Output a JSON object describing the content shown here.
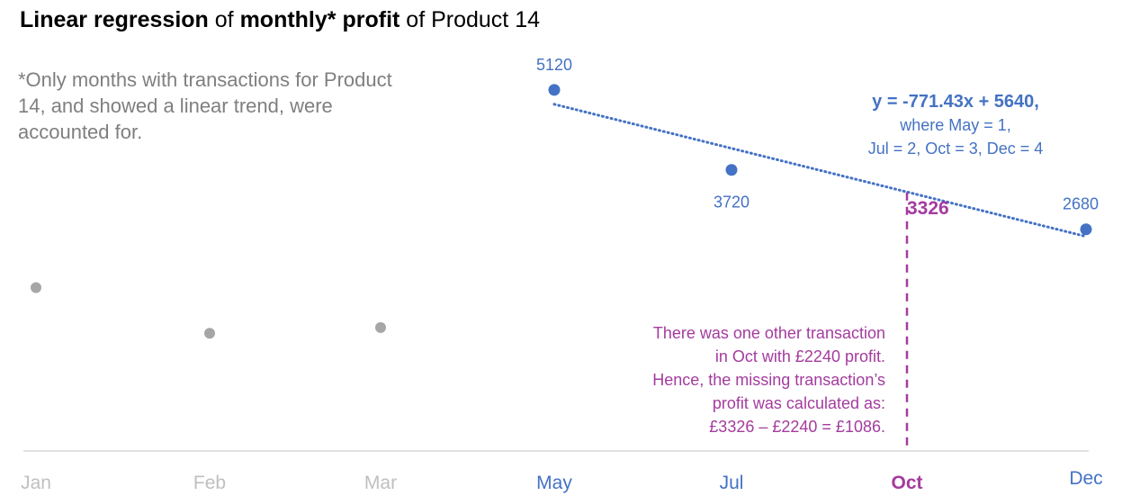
{
  "title": {
    "part1": "Linear regression",
    "part2": " of ",
    "part3": "monthly*",
    "part4": " ",
    "part5": "profit",
    "part6": " of Product 14"
  },
  "footnote": "*Only months with transactions for Product 14, and showed a linear trend, were accounted for.",
  "equation": {
    "main": "y = -771.43x + 5640,",
    "line2": "where May = 1,",
    "line3": "Jul = 2, Oct = 3, Dec = 4"
  },
  "note": {
    "line1": "There was one other transaction",
    "line2": "in Oct with £2240 profit.",
    "line3": "Hence, the missing transaction’s",
    "line4": "profit was calculated as:",
    "line5": "£3326 – £2240 = £1086."
  },
  "colors": {
    "regression": "#4472c4",
    "excluded": "#a6a6a6",
    "excluded_label": "#bfbfbf",
    "prediction": "#a43b9e",
    "axis": "#d9d9d9"
  },
  "chart_data": {
    "type": "scatter",
    "title": "Linear regression of monthly* profit of Product 14",
    "categories": [
      "Jan",
      "Feb",
      "Mar",
      "May",
      "Jul",
      "Oct",
      "Dec"
    ],
    "points": [
      {
        "month": "Jan",
        "value": 1660,
        "included": false,
        "label": ""
      },
      {
        "month": "Feb",
        "value": 860,
        "included": false,
        "label": ""
      },
      {
        "month": "Mar",
        "value": 960,
        "included": false,
        "label": ""
      },
      {
        "month": "May",
        "value": 5120,
        "included": true,
        "label": "5120"
      },
      {
        "month": "Jul",
        "value": 3720,
        "included": true,
        "label": "3720"
      },
      {
        "month": "Dec",
        "value": 2680,
        "included": true,
        "label": "2680"
      }
    ],
    "trendline": {
      "slope": -771.43,
      "intercept": 5640,
      "from": "May",
      "to": "Dec"
    },
    "prediction": {
      "month": "Oct",
      "value": 3326,
      "label": "3326"
    },
    "ylim": [
      -1200,
      6000
    ],
    "grid": false,
    "legend": "none"
  }
}
